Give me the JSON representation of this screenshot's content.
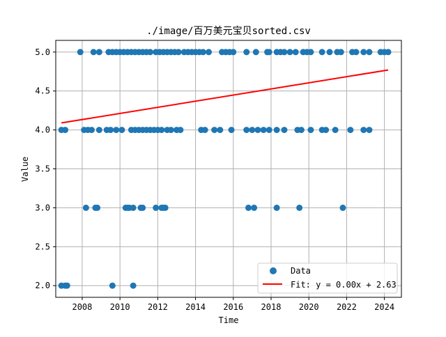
{
  "chart_data": {
    "type": "scatter",
    "title": "./image/百万美元宝贝sorted.csv",
    "xlabel": "Time",
    "ylabel": "Value",
    "xlim": [
      2006.6,
      2024.9
    ],
    "ylim": [
      1.85,
      5.15
    ],
    "x_ticks": [
      "2008",
      "2010",
      "2012",
      "2014",
      "2016",
      "2018",
      "2020",
      "2022",
      "2024"
    ],
    "y_ticks": [
      "2.0",
      "2.5",
      "3.0",
      "3.5",
      "4.0",
      "4.5",
      "5.0"
    ],
    "grid": true,
    "legend_position": "lower-right",
    "colors": {
      "data": "#1f77b4",
      "fit": "#ff0000"
    },
    "series": [
      {
        "name": "Data",
        "kind": "scatter",
        "points": [
          [
            2007.9,
            5.0
          ],
          [
            2008.6,
            5.0
          ],
          [
            2008.9,
            5.0
          ],
          [
            2009.4,
            5.0
          ],
          [
            2009.6,
            5.0
          ],
          [
            2009.8,
            5.0
          ],
          [
            2010.0,
            5.0
          ],
          [
            2010.2,
            5.0
          ],
          [
            2010.4,
            5.0
          ],
          [
            2010.6,
            5.0
          ],
          [
            2010.8,
            5.0
          ],
          [
            2011.0,
            5.0
          ],
          [
            2011.2,
            5.0
          ],
          [
            2011.4,
            5.0
          ],
          [
            2011.6,
            5.0
          ],
          [
            2011.9,
            5.0
          ],
          [
            2012.1,
            5.0
          ],
          [
            2012.3,
            5.0
          ],
          [
            2012.5,
            5.0
          ],
          [
            2012.7,
            5.0
          ],
          [
            2012.9,
            5.0
          ],
          [
            2013.1,
            5.0
          ],
          [
            2013.4,
            5.0
          ],
          [
            2013.6,
            5.0
          ],
          [
            2013.8,
            5.0
          ],
          [
            2014.0,
            5.0
          ],
          [
            2014.2,
            5.0
          ],
          [
            2014.4,
            5.0
          ],
          [
            2014.7,
            5.0
          ],
          [
            2015.4,
            5.0
          ],
          [
            2015.6,
            5.0
          ],
          [
            2015.8,
            5.0
          ],
          [
            2016.0,
            5.0
          ],
          [
            2016.7,
            5.0
          ],
          [
            2017.2,
            5.0
          ],
          [
            2017.8,
            5.0
          ],
          [
            2017.9,
            5.0
          ],
          [
            2018.3,
            5.0
          ],
          [
            2018.5,
            5.0
          ],
          [
            2018.7,
            5.0
          ],
          [
            2019.0,
            5.0
          ],
          [
            2019.3,
            5.0
          ],
          [
            2019.7,
            5.0
          ],
          [
            2019.9,
            5.0
          ],
          [
            2020.1,
            5.0
          ],
          [
            2020.7,
            5.0
          ],
          [
            2021.1,
            5.0
          ],
          [
            2021.5,
            5.0
          ],
          [
            2021.7,
            5.0
          ],
          [
            2022.3,
            5.0
          ],
          [
            2022.5,
            5.0
          ],
          [
            2022.9,
            5.0
          ],
          [
            2023.2,
            5.0
          ],
          [
            2023.8,
            5.0
          ],
          [
            2024.0,
            5.0
          ],
          [
            2024.2,
            5.0
          ],
          [
            2006.9,
            4.0
          ],
          [
            2007.1,
            4.0
          ],
          [
            2008.1,
            4.0
          ],
          [
            2008.3,
            4.0
          ],
          [
            2008.5,
            4.0
          ],
          [
            2008.9,
            4.0
          ],
          [
            2009.3,
            4.0
          ],
          [
            2009.5,
            4.0
          ],
          [
            2009.8,
            4.0
          ],
          [
            2010.1,
            4.0
          ],
          [
            2010.6,
            4.0
          ],
          [
            2010.8,
            4.0
          ],
          [
            2011.0,
            4.0
          ],
          [
            2011.2,
            4.0
          ],
          [
            2011.4,
            4.0
          ],
          [
            2011.6,
            4.0
          ],
          [
            2011.8,
            4.0
          ],
          [
            2012.0,
            4.0
          ],
          [
            2012.2,
            4.0
          ],
          [
            2012.5,
            4.0
          ],
          [
            2012.7,
            4.0
          ],
          [
            2013.0,
            4.0
          ],
          [
            2013.2,
            4.0
          ],
          [
            2014.3,
            4.0
          ],
          [
            2014.5,
            4.0
          ],
          [
            2015.0,
            4.0
          ],
          [
            2015.3,
            4.0
          ],
          [
            2015.9,
            4.0
          ],
          [
            2016.7,
            4.0
          ],
          [
            2017.0,
            4.0
          ],
          [
            2017.3,
            4.0
          ],
          [
            2017.6,
            4.0
          ],
          [
            2017.9,
            4.0
          ],
          [
            2018.3,
            4.0
          ],
          [
            2018.7,
            4.0
          ],
          [
            2019.4,
            4.0
          ],
          [
            2019.6,
            4.0
          ],
          [
            2020.1,
            4.0
          ],
          [
            2020.7,
            4.0
          ],
          [
            2020.9,
            4.0
          ],
          [
            2021.4,
            4.0
          ],
          [
            2022.2,
            4.0
          ],
          [
            2022.9,
            4.0
          ],
          [
            2023.2,
            4.0
          ],
          [
            2008.2,
            3.0
          ],
          [
            2008.7,
            3.0
          ],
          [
            2008.8,
            3.0
          ],
          [
            2010.3,
            3.0
          ],
          [
            2010.4,
            3.0
          ],
          [
            2010.5,
            3.0
          ],
          [
            2010.7,
            3.0
          ],
          [
            2011.1,
            3.0
          ],
          [
            2011.2,
            3.0
          ],
          [
            2011.9,
            3.0
          ],
          [
            2012.2,
            3.0
          ],
          [
            2012.3,
            3.0
          ],
          [
            2012.4,
            3.0
          ],
          [
            2016.8,
            3.0
          ],
          [
            2017.1,
            3.0
          ],
          [
            2018.3,
            3.0
          ],
          [
            2019.5,
            3.0
          ],
          [
            2021.8,
            3.0
          ],
          [
            2006.9,
            2.0
          ],
          [
            2007.1,
            2.0
          ],
          [
            2007.2,
            2.0
          ],
          [
            2009.6,
            2.0
          ],
          [
            2010.7,
            2.0
          ]
        ]
      },
      {
        "name": "Fit: y = 0.00x + 2.63",
        "kind": "line",
        "points": [
          [
            2006.9,
            4.09
          ],
          [
            2024.2,
            4.77
          ]
        ]
      }
    ]
  }
}
